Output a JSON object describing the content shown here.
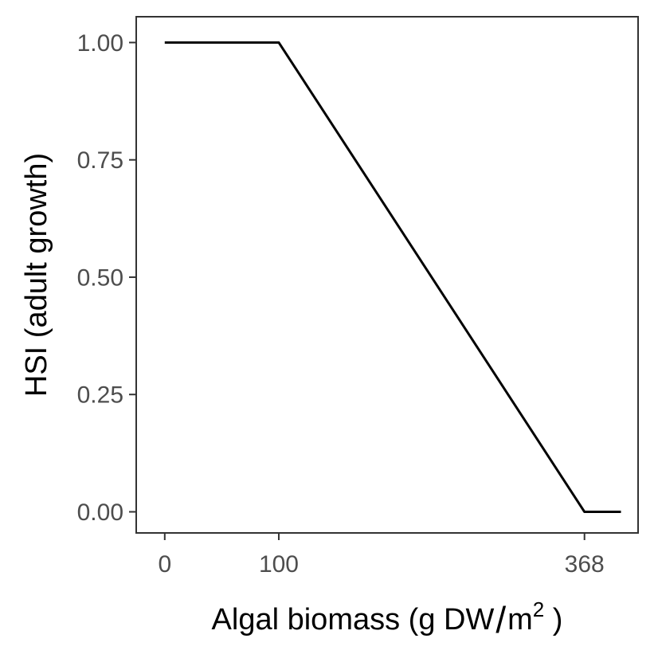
{
  "chart_data": {
    "type": "line",
    "title": "",
    "xlabel_main": "Algal biomass (g DW",
    "xlabel_slash": "/",
    "xlabel_unit": "m",
    "xlabel_sup": "2",
    "xlabel_close": " )",
    "ylabel": "HSI (adult growth)",
    "xlim": [
      -25,
      415
    ],
    "ylim": [
      -0.045,
      1.055
    ],
    "x_ticks": [
      0,
      100,
      368
    ],
    "x_tick_labels": [
      "0",
      "100",
      "368"
    ],
    "y_ticks": [
      0,
      0.25,
      0.5,
      0.75,
      1.0
    ],
    "y_tick_labels": [
      "0.00",
      "0.25",
      "0.50",
      "0.75",
      "1.00"
    ],
    "grid": false,
    "line_color": "#000000",
    "frame_color": "#333333",
    "series": [
      {
        "x": [
          0,
          100,
          368,
          400
        ],
        "y": [
          1.0,
          1.0,
          0.0,
          0.0
        ]
      }
    ]
  }
}
